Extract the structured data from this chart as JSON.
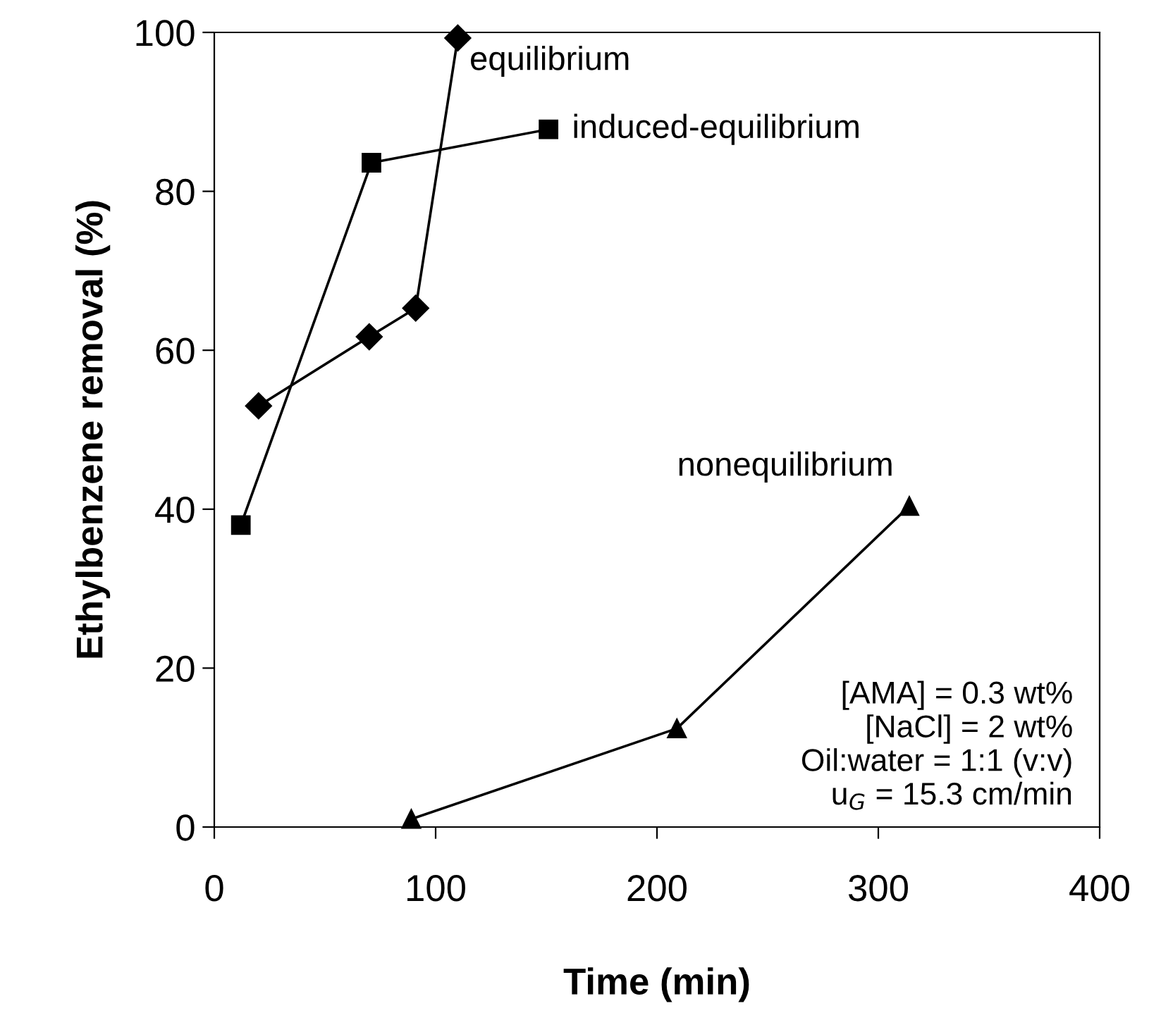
{
  "chart_data": {
    "type": "line",
    "xlabel": "Time (min)",
    "ylabel": "Ethylbenzene removal (%)",
    "xlim": [
      0,
      400
    ],
    "xticks": [
      0,
      100,
      200,
      300,
      400
    ],
    "ylim": [
      0,
      100
    ],
    "yticks": [
      0,
      20,
      40,
      60,
      80,
      100
    ],
    "grid": false,
    "legend": false,
    "line_style": "solid",
    "series": [
      {
        "name": "equilibrium",
        "color": "#000000",
        "marker": "diamond",
        "x": [
          20,
          70,
          91,
          110
        ],
        "values": [
          53,
          61.7,
          65.3,
          99.3
        ]
      },
      {
        "name": "induced-equilibrium",
        "color": "#000000",
        "marker": "square",
        "x": [
          12,
          71,
          151
        ],
        "values": [
          38,
          83.6,
          87.8
        ]
      },
      {
        "name": "nonequilibrium",
        "color": "#000000",
        "marker": "triangle",
        "x": [
          89,
          209,
          314
        ],
        "values": [
          1,
          12.4,
          40.4
        ]
      }
    ],
    "annotations": [
      "[AMA] = 0.3 wt%\n[NaCl] = 2 wt%\nOil:water = 1:1 (v:v)\nu$_{G}$ = 15.3 cm/min"
    ]
  }
}
